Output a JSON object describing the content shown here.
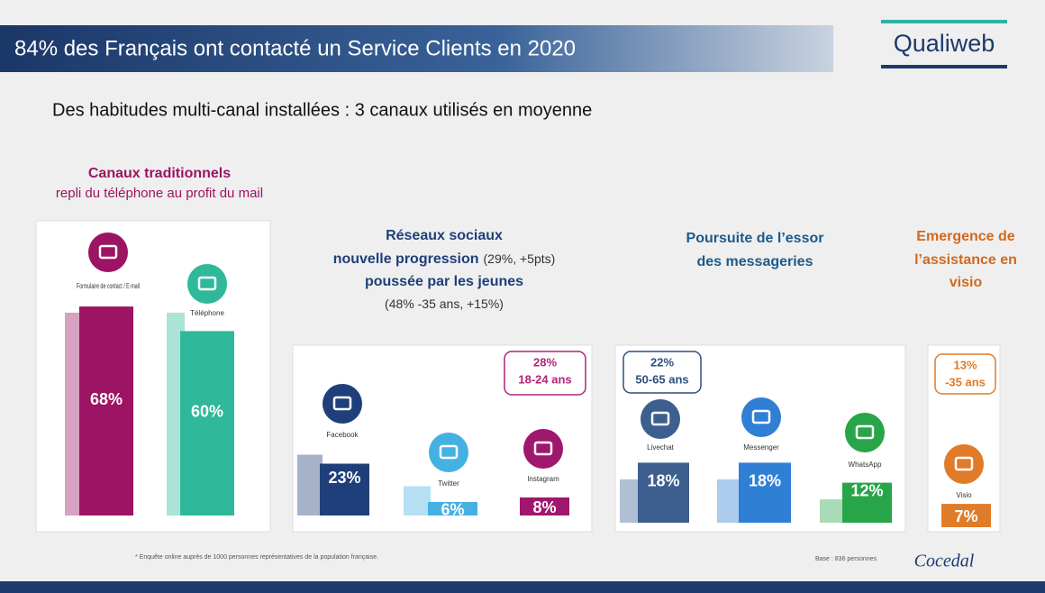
{
  "header": {
    "title": "84% des Français ont contacté un Service Clients en 2020",
    "logo": "Qualiweb"
  },
  "subtitle": "Des habitudes multi-canal installées : 3 canaux utilisés en moyenne",
  "groups": [
    {
      "heading": [
        {
          "text": "Canaux traditionnels"
        },
        {
          "note": "repli du téléphone au profit du mail"
        }
      ],
      "color": "#9c1463",
      "channels": [
        {
          "name": "Formulaire de contact / E-mail",
          "value": 68,
          "value_label": "68%",
          "previous": 66,
          "color": "#9c1463"
        },
        {
          "name": "Téléphone",
          "value": 60,
          "value_label": "60%",
          "previous": 66,
          "color": "#2fb89a"
        }
      ]
    },
    {
      "heading": [
        {
          "text": "Réseaux sociaux"
        },
        {
          "text": "nouvelle progression",
          "note": "(29%, +5pts)"
        },
        {
          "text": "poussée par les jeunes"
        },
        {
          "note": "(48% -35 ans, +15%)"
        }
      ],
      "color": "#1f3f7a",
      "callout": [
        "28%",
        "18-24 ans"
      ],
      "callout_color": "#b0237a",
      "channels": [
        {
          "name": "Facebook",
          "value": 23,
          "value_label": "23%",
          "previous": 27,
          "color": "#1f3f7a"
        },
        {
          "name": "Twitter",
          "value": 6,
          "value_label": "6%",
          "previous": 13,
          "color": "#45b1e3"
        },
        {
          "name": "Instagram",
          "value": 8,
          "value_label": "8%",
          "color": "#a0176e"
        }
      ]
    },
    {
      "heading": [
        {
          "text": "Poursuite de l’essor"
        },
        {
          "text": "des messageries"
        }
      ],
      "color": "#1c5b8c",
      "callout": [
        "22%",
        "50-65 ans"
      ],
      "callout_color": "#2d4f80",
      "channels": [
        {
          "name": "Livechat",
          "value": 18,
          "value_label": "18%",
          "previous": 13,
          "color": "#3d5f8f"
        },
        {
          "name": "Messenger",
          "value": 18,
          "value_label": "18%",
          "previous": 13,
          "color": "#2f7fd4"
        },
        {
          "name": "WhatsApp",
          "value": 12,
          "value_label": "12%",
          "previous": 7,
          "color": "#28a548"
        }
      ]
    },
    {
      "heading": [
        {
          "text": "Emergence de"
        },
        {
          "text": "l’assistance en"
        },
        {
          "text": "visio"
        }
      ],
      "color": "#d2691e",
      "callout": [
        "13%",
        "-35 ans"
      ],
      "callout_color": "#e07b2a",
      "channels": [
        {
          "name": "Visio",
          "value": 7,
          "value_label": "7%",
          "color": "#e07b2a"
        }
      ]
    }
  ],
  "footnote": "* Enquête online auprès de 1000 personnes représentatives de la population française.",
  "base": "Base : 836 personnes",
  "brand": "Cocedal"
}
